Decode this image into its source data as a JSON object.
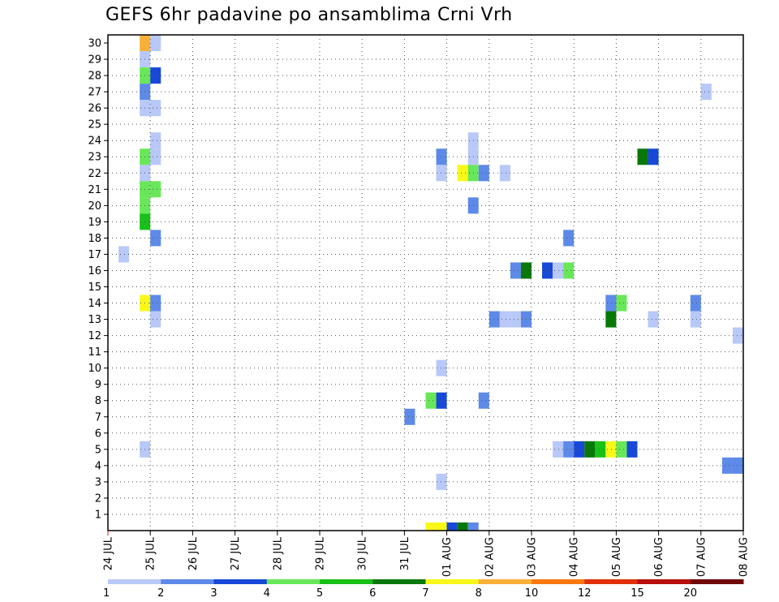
{
  "chart_data": {
    "type": "heatmap",
    "title": "GEFS 6hr padavine po ansamblima Crni Vrh",
    "xlabel": "",
    "ylabel": "",
    "x_ticks": [
      "24 JUL",
      "25 JUL",
      "26 JUL",
      "27 JUL",
      "28 JUL",
      "29 JUL",
      "30 JUL",
      "31 JUL",
      "01 AUG",
      "02 AUG",
      "03 AUG",
      "04 AUG",
      "05 AUG",
      "06 AUG",
      "07 AUG",
      "08 AUG"
    ],
    "y_ticks": [
      "1",
      "2",
      "3",
      "4",
      "5",
      "6",
      "7",
      "8",
      "9",
      "10",
      "11",
      "12",
      "13",
      "14",
      "15",
      "16",
      "17",
      "18",
      "19",
      "20",
      "21",
      "22",
      "23",
      "24",
      "25",
      "26",
      "27",
      "28",
      "29",
      "30"
    ],
    "ylim": [
      0,
      30
    ],
    "x_unit": "6-hour step from 24 JUL 00Z",
    "xlim": [
      0,
      60
    ],
    "grid": true,
    "legend": {
      "placement": "bottom",
      "labels": [
        "1",
        "2",
        "3",
        "4",
        "5",
        "6",
        "7",
        "8",
        "10",
        "12",
        "15",
        "20"
      ],
      "colors": [
        "#b8c8f8",
        "#5d8ae8",
        "#1848d8",
        "#68e858",
        "#18c018",
        "#087808",
        "#f8f818",
        "#f8b038",
        "#f87810",
        "#e03008",
        "#b81008",
        "#700808"
      ]
    },
    "cells": [
      {
        "t": 1,
        "m": 17,
        "v": 1
      },
      {
        "t": 3,
        "m": 30,
        "v": 8
      },
      {
        "t": 4,
        "m": 30,
        "v": 1
      },
      {
        "t": 3,
        "m": 29,
        "v": 1
      },
      {
        "t": 3,
        "m": 28,
        "v": 4
      },
      {
        "t": 4,
        "m": 28,
        "v": 3
      },
      {
        "t": 3,
        "m": 27,
        "v": 2
      },
      {
        "t": 3,
        "m": 26,
        "v": 1
      },
      {
        "t": 4,
        "m": 26,
        "v": 1
      },
      {
        "t": 4,
        "m": 24,
        "v": 1
      },
      {
        "t": 3,
        "m": 23,
        "v": 4
      },
      {
        "t": 4,
        "m": 23,
        "v": 1
      },
      {
        "t": 3,
        "m": 22,
        "v": 1
      },
      {
        "t": 3,
        "m": 21,
        "v": 4
      },
      {
        "t": 4,
        "m": 21,
        "v": 4
      },
      {
        "t": 3,
        "m": 20,
        "v": 4
      },
      {
        "t": 3,
        "m": 19,
        "v": 5
      },
      {
        "t": 4,
        "m": 18,
        "v": 2
      },
      {
        "t": 3,
        "m": 14,
        "v": 7
      },
      {
        "t": 4,
        "m": 14,
        "v": 2
      },
      {
        "t": 4,
        "m": 13,
        "v": 1
      },
      {
        "t": 3,
        "m": 5,
        "v": 1
      },
      {
        "t": 28,
        "m": 7,
        "v": 2
      },
      {
        "t": 30,
        "m": 8,
        "v": 4
      },
      {
        "t": 31,
        "m": 8,
        "v": 3
      },
      {
        "t": 31,
        "m": 10,
        "v": 1
      },
      {
        "t": 31,
        "m": 3,
        "v": 1
      },
      {
        "t": 31,
        "m": 23,
        "v": 2
      },
      {
        "t": 31,
        "m": 22,
        "v": 1
      },
      {
        "t": 30,
        "m": 0,
        "v": 7
      },
      {
        "t": 31,
        "m": 0,
        "v": 7
      },
      {
        "t": 32,
        "m": 0,
        "v": 3
      },
      {
        "t": 33,
        "m": 0,
        "v": 6
      },
      {
        "t": 34,
        "m": 0,
        "v": 2
      },
      {
        "t": 34,
        "m": 24,
        "v": 1
      },
      {
        "t": 34,
        "m": 23,
        "v": 1
      },
      {
        "t": 33,
        "m": 22,
        "v": 7
      },
      {
        "t": 34,
        "m": 22,
        "v": 4
      },
      {
        "t": 35,
        "m": 22,
        "v": 2
      },
      {
        "t": 37,
        "m": 22,
        "v": 1
      },
      {
        "t": 34,
        "m": 20,
        "v": 2
      },
      {
        "t": 35,
        "m": 8,
        "v": 2
      },
      {
        "t": 36,
        "m": 13,
        "v": 2
      },
      {
        "t": 37,
        "m": 13,
        "v": 1
      },
      {
        "t": 38,
        "m": 13,
        "v": 1
      },
      {
        "t": 39,
        "m": 13,
        "v": 2
      },
      {
        "t": 38,
        "m": 16,
        "v": 2
      },
      {
        "t": 39,
        "m": 16,
        "v": 6
      },
      {
        "t": 41,
        "m": 16,
        "v": 3
      },
      {
        "t": 42,
        "m": 16,
        "v": 1
      },
      {
        "t": 43,
        "m": 16,
        "v": 4
      },
      {
        "t": 43,
        "m": 18,
        "v": 2
      },
      {
        "t": 42,
        "m": 5,
        "v": 1
      },
      {
        "t": 43,
        "m": 5,
        "v": 2
      },
      {
        "t": 44,
        "m": 5,
        "v": 3
      },
      {
        "t": 45,
        "m": 5,
        "v": 6
      },
      {
        "t": 46,
        "m": 5,
        "v": 5
      },
      {
        "t": 47,
        "m": 5,
        "v": 7
      },
      {
        "t": 48,
        "m": 5,
        "v": 4
      },
      {
        "t": 49,
        "m": 5,
        "v": 3
      },
      {
        "t": 47,
        "m": 14,
        "v": 2
      },
      {
        "t": 48,
        "m": 14,
        "v": 4
      },
      {
        "t": 47,
        "m": 13,
        "v": 6
      },
      {
        "t": 50,
        "m": 23,
        "v": 6
      },
      {
        "t": 51,
        "m": 23,
        "v": 3
      },
      {
        "t": 51,
        "m": 13,
        "v": 1
      },
      {
        "t": 55,
        "m": 14,
        "v": 2
      },
      {
        "t": 55,
        "m": 13,
        "v": 1
      },
      {
        "t": 56,
        "m": 27,
        "v": 1
      },
      {
        "t": 58,
        "m": 4,
        "v": 2
      },
      {
        "t": 59,
        "m": 4,
        "v": 2
      },
      {
        "t": 59,
        "m": 12,
        "v": 1
      }
    ]
  }
}
